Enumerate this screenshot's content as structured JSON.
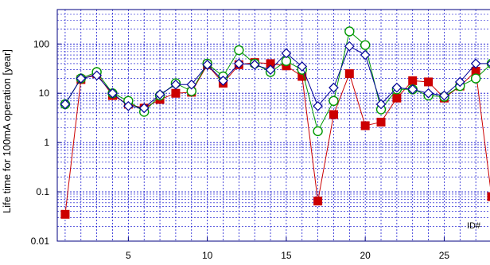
{
  "chart_data": {
    "type": "line",
    "title": "",
    "xlabel": "",
    "ylabel": "Life time for 100mA operation [year]",
    "yscale": "log",
    "xlim": [
      0.5,
      28
    ],
    "ylim": [
      0.01,
      500
    ],
    "xticks": [
      5,
      10,
      15,
      20,
      25
    ],
    "yticks": [
      0.01,
      0.1,
      1,
      10,
      100
    ],
    "ytick_labels": [
      "0.01",
      "0.1",
      "1",
      "10",
      "100"
    ],
    "grid": true,
    "colors": {
      "axes": "#000080",
      "grid": "#0000cc"
    },
    "annotation": "ID#",
    "x": [
      1,
      2,
      3,
      4,
      5,
      6,
      7,
      8,
      9,
      10,
      11,
      12,
      13,
      14,
      15,
      16,
      17,
      18,
      19,
      20,
      21,
      22,
      23,
      24,
      25,
      26,
      27,
      28
    ],
    "series": [
      {
        "color": "#cc0000",
        "marker": "square",
        "values": [
          0.035,
          19,
          25,
          9,
          6,
          5,
          7.5,
          10,
          10.5,
          38,
          16,
          38,
          42,
          40,
          36,
          22,
          0.065,
          3.7,
          25,
          2.2,
          2.6,
          8,
          18,
          17,
          8,
          14,
          28,
          0.08
        ]
      },
      {
        "color": "#009900",
        "marker": "circle",
        "values": [
          6,
          20,
          27,
          10,
          7,
          4.2,
          9,
          16,
          11,
          40,
          22,
          75,
          40,
          27,
          45,
          30,
          1.7,
          7,
          180,
          95,
          4.7,
          12,
          12,
          9,
          8.5,
          14,
          20,
          40
        ]
      },
      {
        "color": "#000099",
        "marker": "diamond",
        "values": [
          6,
          20,
          23,
          10,
          5.5,
          5,
          9.5,
          15,
          15,
          38,
          18,
          40,
          38,
          30,
          65,
          35,
          5.5,
          13,
          90,
          60,
          6,
          13,
          12,
          10,
          9,
          17,
          40,
          40
        ]
      }
    ]
  }
}
